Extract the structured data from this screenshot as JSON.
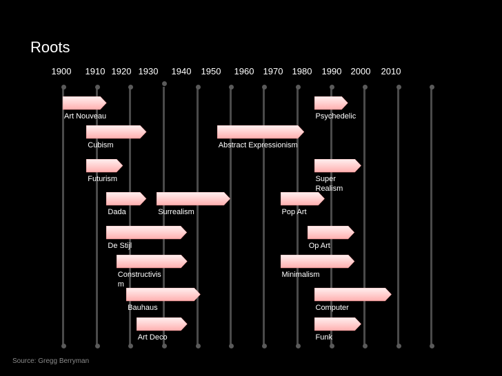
{
  "title": "Roots",
  "source": "Source: Gregg Berryman",
  "chart_data": {
    "type": "timeline",
    "years": [
      "1900",
      "1910",
      "1920",
      "1930",
      "1940",
      "1950",
      "1960",
      "1970",
      "1980",
      "1990",
      "2000",
      "2010"
    ],
    "movements": [
      {
        "name": "Art Nouveau",
        "start": 1900,
        "end": 1913
      },
      {
        "name": "Cubism",
        "start": 1907,
        "end": 1925
      },
      {
        "name": "Futurism",
        "start": 1907,
        "end": 1918
      },
      {
        "name": "Dada",
        "start": 1913,
        "end": 1925
      },
      {
        "name": "Surrealism",
        "start": 1928,
        "end": 1950
      },
      {
        "name": "De Stijl",
        "start": 1913,
        "end": 1937
      },
      {
        "name": "Constructivism",
        "start": 1916,
        "end": 1937
      },
      {
        "name": "Bauhaus",
        "start": 1919,
        "end": 1941
      },
      {
        "name": "Art Deco",
        "start": 1922,
        "end": 1937
      },
      {
        "name": "Abstract Expressionism",
        "start": 1946,
        "end": 1972
      },
      {
        "name": "Psychedelic",
        "start": 1975,
        "end": 1985
      },
      {
        "name": "Super Realism",
        "start": 1975,
        "end": 1989
      },
      {
        "name": "Pop Art",
        "start": 1965,
        "end": 1978
      },
      {
        "name": "Op Art",
        "start": 1973,
        "end": 1987
      },
      {
        "name": "Minimalism",
        "start": 1965,
        "end": 1987
      },
      {
        "name": "Computer",
        "start": 1975,
        "end": 1998
      },
      {
        "name": "Funk",
        "start": 1975,
        "end": 1989
      }
    ]
  },
  "colors": {
    "background": "#000000",
    "bar_fill": "#ffc8c8",
    "gridline": "#4a4a4a",
    "text": "#ffffff",
    "source_text": "#8a8a8a"
  }
}
